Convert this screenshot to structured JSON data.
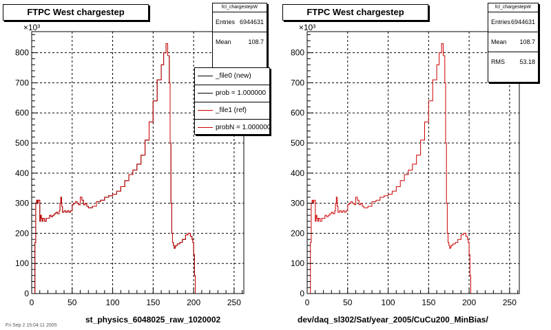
{
  "panels": [
    {
      "title": "FTPC West chargestep",
      "xlabel": "st_physics_6048025_raw_1020002",
      "stats": {
        "name": "fcl_chargestepW",
        "rows": [
          {
            "label": "Entries",
            "value": "6944631"
          },
          {
            "label": "Mean",
            "value": "108.7"
          }
        ]
      },
      "legend": [
        {
          "label": "_file0 (new)",
          "color": "#000000"
        },
        {
          "label": "prob = 1.000000",
          "color": "#000000"
        },
        {
          "label": "_file1 (ref)",
          "color": "#cc0000"
        },
        {
          "label": "probN = 1.000000",
          "color": "#cc0000"
        }
      ]
    },
    {
      "title": "FTPC West chargestep",
      "xlabel": "dev/daq_sl302/Sat/year_2005/CuCu200_MinBias/",
      "stats": {
        "name": "fcl_chargestepW",
        "rows": [
          {
            "label": "Entries",
            "value": "6944631"
          },
          {
            "label": "Mean",
            "value": "108.7"
          },
          {
            "label": "RMS",
            "value": "53.18"
          }
        ]
      },
      "legend": []
    }
  ],
  "footer": "Fri Sep  2 15:04:11 2005",
  "chart_data": [
    {
      "type": "line",
      "title": "FTPC West chargestep",
      "xlabel": "st_physics_6048025_raw_1020002",
      "ylabel": "",
      "y_multiplier_label": "×10³",
      "xlim": [
        0,
        262
      ],
      "ylim": [
        0,
        870
      ],
      "xticks": [
        0,
        50,
        100,
        150,
        200,
        250
      ],
      "yticks": [
        0,
        100,
        200,
        300,
        400,
        500,
        600,
        700,
        800
      ],
      "grid": true,
      "legend_position": "top-right",
      "series": [
        {
          "name": "_file0 (new)",
          "color": "#000000",
          "x": [
            0,
            3,
            4,
            5,
            6,
            7,
            8,
            9,
            10,
            11,
            12,
            13,
            14,
            16,
            18,
            20,
            22,
            24,
            26,
            28,
            30,
            32,
            34,
            35,
            36,
            37,
            38,
            40,
            42,
            44,
            46,
            48,
            50,
            52,
            54,
            56,
            58,
            60,
            62,
            64,
            66,
            68,
            70,
            75,
            80,
            85,
            90,
            95,
            100,
            105,
            110,
            115,
            120,
            125,
            130,
            135,
            140,
            145,
            150,
            155,
            160,
            163,
            166,
            168,
            170,
            171,
            172,
            173,
            174,
            175,
            176,
            177,
            178,
            180,
            183,
            186,
            190,
            193,
            196,
            198,
            199,
            200,
            201,
            202
          ],
          "y": [
            0,
            0,
            170,
            300,
            310,
            300,
            310,
            310,
            240,
            260,
            250,
            240,
            250,
            240,
            250,
            250,
            260,
            255,
            260,
            265,
            270,
            265,
            275,
            300,
            320,
            290,
            270,
            275,
            270,
            275,
            270,
            275,
            295,
            300,
            305,
            300,
            295,
            320,
            310,
            295,
            300,
            290,
            285,
            290,
            305,
            310,
            320,
            325,
            330,
            340,
            355,
            375,
            395,
            410,
            430,
            460,
            510,
            570,
            640,
            710,
            760,
            800,
            830,
            790,
            700,
            500,
            300,
            200,
            170,
            160,
            150,
            155,
            160,
            165,
            170,
            180,
            195,
            200,
            190,
            180,
            170,
            130,
            60,
            0
          ]
        },
        {
          "name": "_file1 (ref)",
          "color": "#cc0000",
          "x": [
            0,
            3,
            4,
            5,
            6,
            7,
            8,
            9,
            10,
            11,
            12,
            13,
            14,
            16,
            18,
            20,
            22,
            24,
            26,
            28,
            30,
            32,
            34,
            35,
            36,
            37,
            38,
            40,
            42,
            44,
            46,
            48,
            50,
            52,
            54,
            56,
            58,
            60,
            62,
            64,
            66,
            68,
            70,
            75,
            80,
            85,
            90,
            95,
            100,
            105,
            110,
            115,
            120,
            125,
            130,
            135,
            140,
            145,
            150,
            155,
            160,
            163,
            166,
            168,
            170,
            171,
            172,
            173,
            174,
            175,
            176,
            177,
            178,
            180,
            183,
            186,
            190,
            193,
            196,
            198,
            199,
            200,
            201,
            202
          ],
          "y": [
            0,
            0,
            170,
            300,
            310,
            300,
            310,
            310,
            240,
            260,
            250,
            240,
            250,
            240,
            250,
            250,
            260,
            255,
            260,
            265,
            270,
            265,
            275,
            300,
            320,
            290,
            270,
            275,
            270,
            275,
            270,
            275,
            295,
            300,
            305,
            300,
            295,
            320,
            310,
            295,
            300,
            290,
            285,
            290,
            305,
            310,
            320,
            325,
            330,
            340,
            355,
            375,
            395,
            410,
            430,
            460,
            510,
            570,
            640,
            710,
            760,
            800,
            830,
            790,
            700,
            500,
            300,
            200,
            170,
            160,
            150,
            155,
            160,
            165,
            170,
            180,
            195,
            200,
            190,
            180,
            170,
            130,
            60,
            0
          ]
        }
      ]
    },
    {
      "type": "line",
      "title": "FTPC West chargestep",
      "xlabel": "dev/daq_sl302/Sat/year_2005/CuCu200_MinBias/",
      "ylabel": "",
      "y_multiplier_label": "×10³",
      "xlim": [
        0,
        262
      ],
      "ylim": [
        0,
        870
      ],
      "xticks": [
        0,
        50,
        100,
        150,
        200,
        250
      ],
      "yticks": [
        0,
        100,
        200,
        300,
        400,
        500,
        600,
        700,
        800
      ],
      "grid": true,
      "series": [
        {
          "color": "#cc0000",
          "x": [
            0,
            3,
            4,
            5,
            6,
            7,
            8,
            9,
            10,
            11,
            12,
            13,
            14,
            16,
            18,
            20,
            22,
            24,
            26,
            28,
            30,
            32,
            34,
            35,
            36,
            37,
            38,
            40,
            42,
            44,
            46,
            48,
            50,
            52,
            54,
            56,
            58,
            60,
            62,
            64,
            66,
            68,
            70,
            75,
            80,
            85,
            90,
            95,
            100,
            105,
            110,
            115,
            120,
            125,
            130,
            135,
            140,
            145,
            150,
            155,
            160,
            163,
            166,
            168,
            170,
            171,
            172,
            173,
            174,
            175,
            176,
            177,
            178,
            180,
            183,
            186,
            190,
            193,
            196,
            198,
            199,
            200,
            201,
            202
          ],
          "y": [
            0,
            0,
            170,
            300,
            310,
            300,
            310,
            310,
            240,
            260,
            250,
            240,
            250,
            240,
            250,
            250,
            260,
            255,
            260,
            265,
            270,
            265,
            275,
            300,
            320,
            290,
            270,
            275,
            270,
            275,
            270,
            275,
            295,
            300,
            305,
            300,
            295,
            320,
            310,
            295,
            300,
            290,
            285,
            290,
            305,
            310,
            320,
            325,
            330,
            340,
            355,
            375,
            395,
            410,
            430,
            460,
            510,
            570,
            640,
            710,
            760,
            800,
            830,
            790,
            700,
            500,
            300,
            200,
            170,
            160,
            150,
            155,
            160,
            165,
            170,
            180,
            195,
            200,
            190,
            180,
            170,
            130,
            60,
            0
          ]
        }
      ]
    }
  ]
}
